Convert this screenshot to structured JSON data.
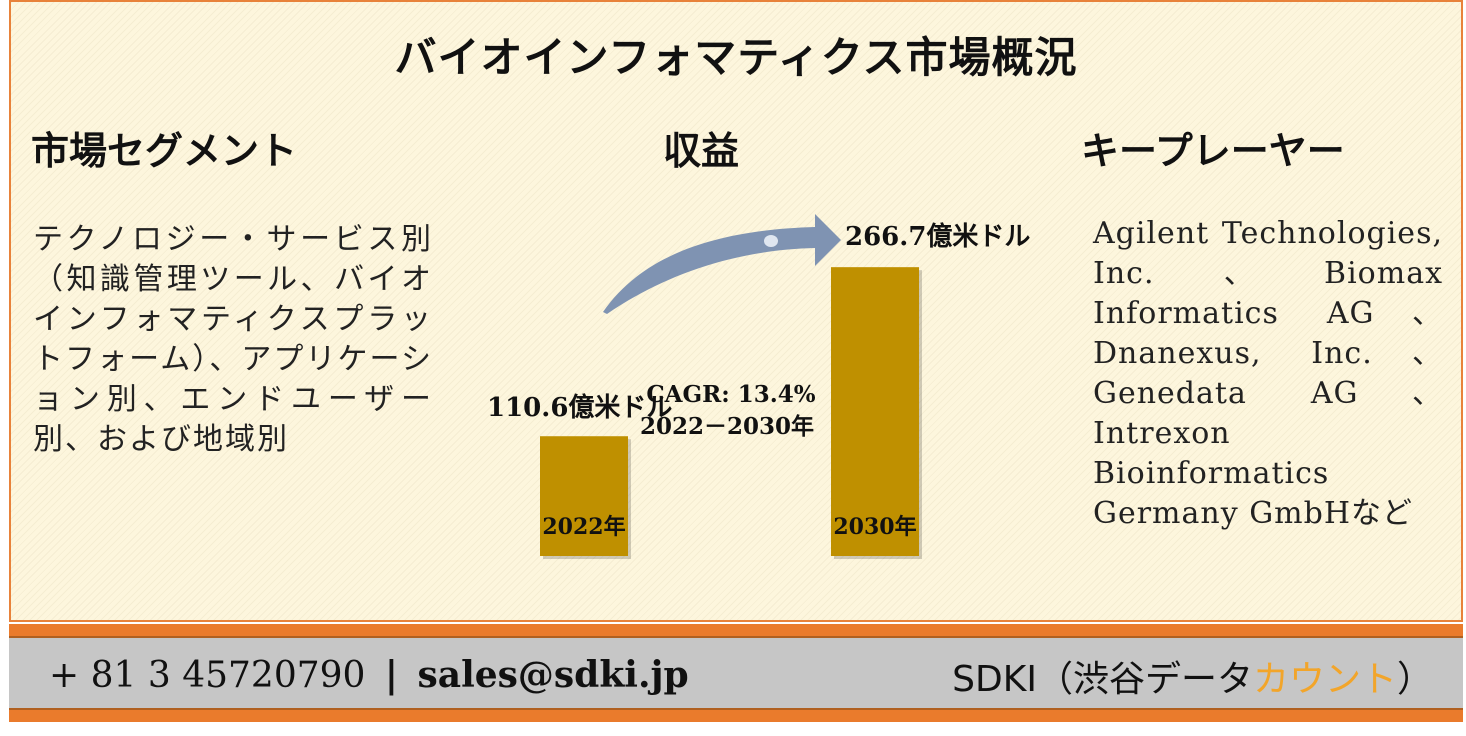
{
  "title": "バイオインフォマティクス市場概況",
  "sections": {
    "segments": {
      "heading": "市場セグメント",
      "text": "テクノロジー・サービス別（知識管理ツール、バイオインフォマティクスプラットフォーム）、アプリケーション別、エンドユーザー別、および地域別"
    },
    "revenue": {
      "heading": "収益"
    },
    "players": {
      "heading": "キープレーヤー",
      "text": "Agilent Technologies, Inc.、Biomax Informatics AG、Dnanexus, Inc.、Genedata AG、Intrexon Bioinformatics Germany GmbHなど"
    }
  },
  "chart_data": {
    "type": "bar",
    "categories": [
      "2022年",
      "2030年"
    ],
    "values": [
      110.6,
      266.7
    ],
    "value_labels": [
      "110.6億米ドル",
      "266.7億米ドル"
    ],
    "unit": "億米ドル",
    "cagr_label": "CAGR: 13.4%",
    "cagr_period": "2022－2030年",
    "bar_color": "#bf9000",
    "arrow_color": "#7f93b2"
  },
  "footer": {
    "phone": "+ 81 3 45720790",
    "separator": "|",
    "email": "sales@sdki.jp",
    "brand_prefix": "SDKI（渋谷データ",
    "brand_accent": "カウント",
    "brand_suffix": "）"
  },
  "colors": {
    "panel_border": "#e8823a",
    "footer_band": "#ea7b2c",
    "footer_bg": "#c6c6c6",
    "brand_accent": "#f2a52a"
  }
}
